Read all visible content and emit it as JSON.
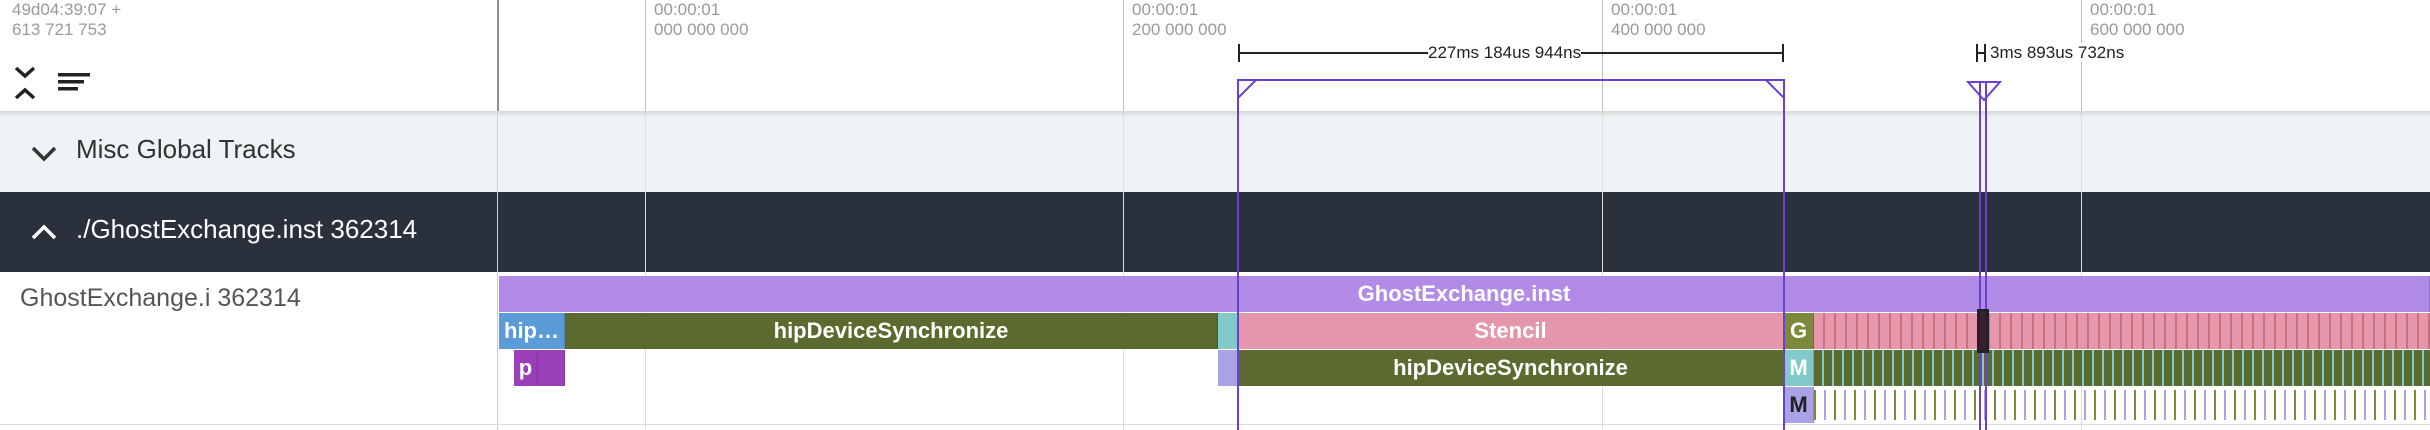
{
  "header": {
    "time_origin": [
      "49d04:39:07 +",
      "613 721 753"
    ],
    "ticks": [
      {
        "line1": "00:00:01",
        "line2": "000 000 000"
      },
      {
        "line1": "00:00:01",
        "line2": "200 000 000"
      },
      {
        "line1": "00:00:01",
        "line2": "400 000 000"
      },
      {
        "line1": "00:00:01",
        "line2": "600 000 000"
      }
    ],
    "measure_main": "227ms 184us 944ns",
    "measure_small": "3ms 893us 732ns"
  },
  "misc_group": {
    "label": "Misc Global Tracks"
  },
  "process_group": {
    "label": "./GhostExchange.inst 362314"
  },
  "thread_track": {
    "label": "GhostExchange.i 362314",
    "slices": {
      "root": "GhostExchange.inst",
      "hip_short": "hip…",
      "hip_sync": "hipDeviceSynchronize",
      "stencil": "Stencil",
      "g": "G",
      "p": "p",
      "hip_sync_2": "hipDeviceSynchronize",
      "m1": "M",
      "m2": "M"
    }
  },
  "colors": {
    "purple_slice": "#b28be6",
    "blue_slice": "#5b9bd8",
    "olive_slice": "#5b6a2e",
    "pink_slice": "#e696aa",
    "teal_slice": "#82c9c9",
    "magenta_slice": "#9a3fb8",
    "light_purple": "#a9a2e6",
    "selection": "#6b3fd6",
    "process_bg": "#2a313d",
    "misc_bg": "#eef3f5"
  },
  "icons": {
    "collapse_all": "collapse-all-icon",
    "filter": "filter-list-icon",
    "misc_chevron": "chevron-down-icon",
    "process_chevron": "chevron-up-icon"
  }
}
